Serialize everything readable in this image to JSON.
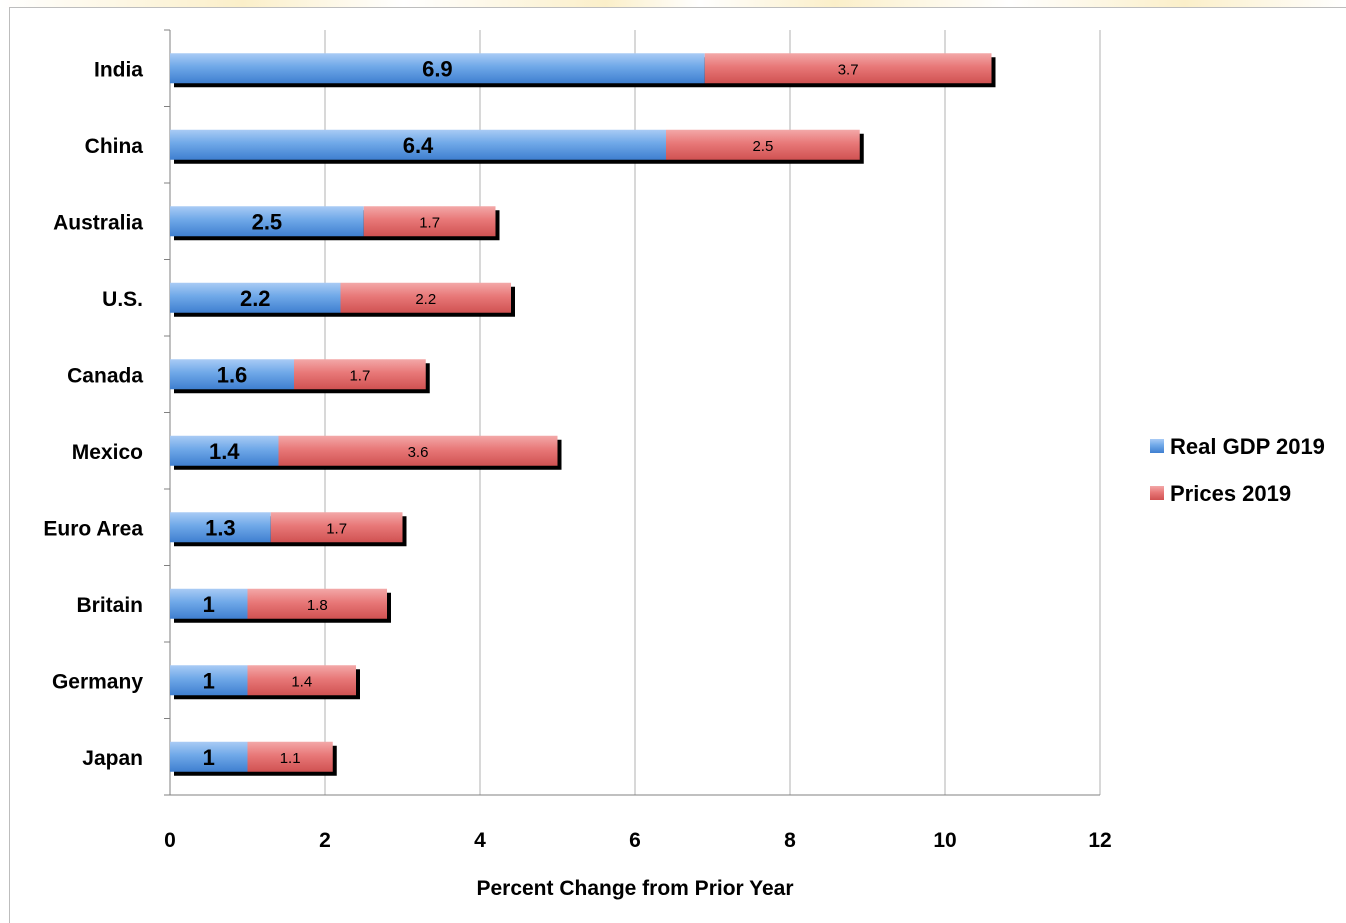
{
  "chart_data": {
    "type": "bar",
    "orientation": "horizontal",
    "stacked": true,
    "categories": [
      "India",
      "China",
      "Australia",
      "U.S.",
      "Canada",
      "Mexico",
      "Euro Area",
      "Britain",
      "Germany",
      "Japan"
    ],
    "series": [
      {
        "name": "Real GDP 2019",
        "values": [
          6.9,
          6.4,
          2.5,
          2.2,
          1.6,
          1.4,
          1.3,
          1,
          1,
          1
        ],
        "color": "#6fa8e8"
      },
      {
        "name": "Prices 2019",
        "values": [
          3.7,
          2.5,
          1.7,
          2.2,
          1.7,
          3.6,
          1.7,
          1.8,
          1.4,
          1.1
        ],
        "color": "#e87878"
      }
    ],
    "xlabel": "Percent Change from Prior Year",
    "xlim": [
      0,
      12
    ],
    "xticks": [
      "0",
      "2",
      "4",
      "6",
      "8",
      "10",
      "12"
    ],
    "grid": true,
    "legend_position": "right"
  }
}
